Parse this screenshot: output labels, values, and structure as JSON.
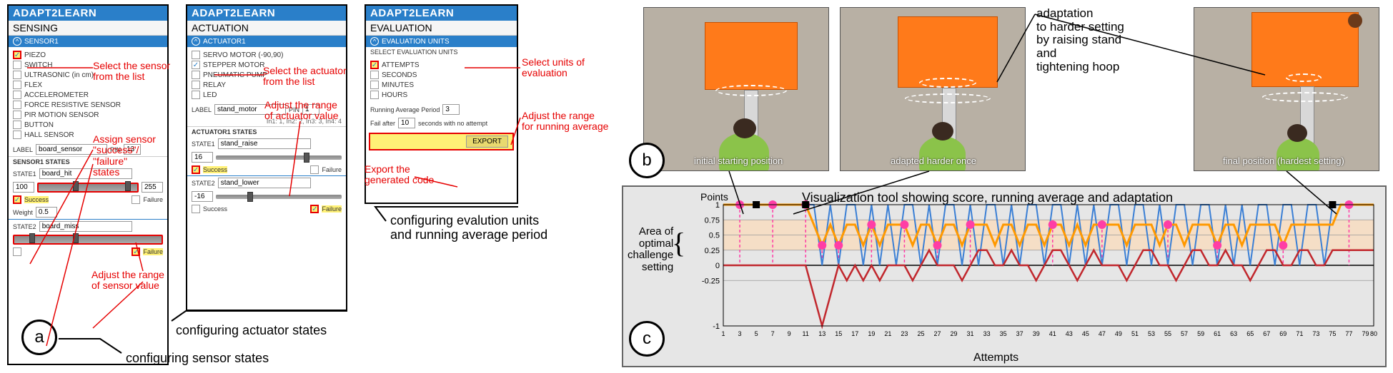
{
  "app_title": "ADAPT2LEARN",
  "panel_a": {
    "subheader": "SENSING",
    "section": "SENSOR1",
    "sensors": [
      "PIEZO",
      "SWITCH",
      "ULTRASONIC (in cm)",
      "FLEX",
      "ACCELEROMETER",
      "FORCE RESISTIVE SENSOR",
      "PIR MOTION SENSOR",
      "BUTTON",
      "HALL SENSOR"
    ],
    "checked_index": 0,
    "label_caption": "LABEL",
    "label_value": "board_sensor",
    "pin_caption": "PIN",
    "pin_value": "13",
    "states_header": "SENSOR1 STATES",
    "state1_label": "STATE1",
    "state1_value": "board_hit",
    "state1_min": "100",
    "state1_max": "255",
    "state1_success": "Success",
    "state1_failure": "Failure",
    "weight_label": "Weight",
    "weight_value": "0.5",
    "state2_label": "STATE2",
    "state2_value": "board_miss",
    "state2_failure": "Failure"
  },
  "panel_b": {
    "subheader": "ACTUATION",
    "section": "ACTUATOR1",
    "actuators": [
      "SERVO MOTOR (-90,90)",
      "STEPPER MOTOR",
      "PNEUMATIC PUMP",
      "RELAY",
      "LED"
    ],
    "checked_index": 1,
    "label_caption": "LABEL",
    "label_value": "stand_motor",
    "pin_caption": "PIN",
    "pin_value": "1",
    "pins_hint": "In1: 1, In2: 2, In3: 3, In4: 4",
    "states_header": "ACTUATOR1 STATES",
    "state1_label": "STATE1",
    "state1_value": "stand_raise",
    "state1_num": "16",
    "state1_success": "Success",
    "state1_failure": "Failure",
    "state2_label": "STATE2",
    "state2_value": "stand_lower",
    "state2_num": "-16",
    "state2_success": "Success",
    "state2_failure": "Failure"
  },
  "panel_c": {
    "subheader": "EVALUATION",
    "section": "EVALUATION UNITS",
    "select_label": "SELECT EVALUATION UNITS",
    "units": [
      "ATTEMPTS",
      "SECONDS",
      "MINUTES",
      "HOURS"
    ],
    "checked_index": 0,
    "running_avg_label": "Running Average Period",
    "running_avg_value": "3",
    "fail_after_pre": "Fail after",
    "fail_after_value": "10",
    "fail_after_post": "seconds with no attempt",
    "export_btn": "EXPORT"
  },
  "annotations": {
    "select_sensor": "Select the sensor\nfrom the list",
    "assign_states": "Assign sensor\n\"success\"/\n\"failure\"\nstates",
    "adjust_sensor_range": "Adjust the range\nof sensor value",
    "select_actuator": "Select the actuator\nfrom the list",
    "adjust_actuator_range": "Adjust the range\nof actuator value",
    "select_units": "Select units of\nevaluation",
    "adjust_running_avg": "Adjust the range\nfor running average",
    "export_code": "Export the\ngenerated code"
  },
  "captions": {
    "sensor_states": "configuring sensor states",
    "actuator_states": "configuring actuator states",
    "eval_units": "configuring evalution units\nand running average period"
  },
  "photos": {
    "p1_caption": "initial starting position",
    "p2_caption": "adapted harder once",
    "p3_caption": "final position (hardest setting)",
    "adaptation_label": "adaptation\nto harder setting\nby raising stand\nand\ntightening hoop"
  },
  "chart": {
    "title": "Visualization tool showing score, running average and adaptation",
    "points_label": "Points",
    "area_label": "Area of\noptimal\nchallenge\nsetting",
    "xlabel": "Attempts",
    "y_ticks": [
      "-1",
      "-0.25",
      "0",
      "0.25",
      "0.5",
      "0.75",
      "1"
    ],
    "x_ticks": [
      1,
      3,
      5,
      7,
      9,
      11,
      13,
      15,
      17,
      19,
      21,
      23,
      25,
      27,
      29,
      31,
      33,
      35,
      37,
      39,
      41,
      43,
      45,
      47,
      49,
      51,
      53,
      55,
      57,
      59,
      61,
      63,
      65,
      67,
      69,
      71,
      73,
      75,
      77,
      79,
      80
    ],
    "band_min": 0.25,
    "band_max": 0.75,
    "band_color": "#ffd8b0",
    "blue_color": "#3a7fd5",
    "orange_color": "#ff9900",
    "red_color": "#c1272d",
    "pink_color": "#ff3ea5",
    "score_series": [
      1,
      1,
      1,
      1,
      1,
      1,
      1,
      1,
      1,
      1,
      1,
      1,
      0,
      1,
      0,
      1,
      1,
      0,
      1,
      0,
      1,
      0,
      1,
      1,
      0,
      1,
      0,
      1,
      1,
      0,
      1,
      0,
      1,
      1,
      0,
      1,
      0,
      1,
      1,
      0,
      1,
      1,
      0,
      1,
      0,
      1,
      0,
      1,
      1,
      0,
      1,
      1,
      0,
      1,
      0,
      1,
      1,
      0,
      1,
      1,
      0,
      1,
      0,
      1,
      0,
      1,
      1,
      0,
      1,
      1,
      0,
      1,
      1,
      0,
      1,
      1,
      1,
      1,
      1,
      1
    ],
    "cum_red": [
      0,
      0,
      0,
      0,
      0,
      0,
      0,
      0,
      0,
      0,
      0,
      -0.5,
      -1,
      -0.5,
      0,
      -0.25,
      0,
      -0.25,
      0,
      -0.25,
      0,
      0,
      0,
      -0.25,
      0,
      0.25,
      0,
      0,
      0,
      -0.25,
      0,
      0.25,
      0.25,
      0,
      0,
      0.25,
      0,
      0,
      -0.25,
      0,
      0.25,
      0.25,
      0,
      -0.25,
      0,
      0.25,
      0,
      0,
      0,
      -0.25,
      0,
      0.25,
      0.25,
      0,
      0,
      -0.25,
      0,
      0.25,
      0.25,
      0,
      0,
      0.25,
      0,
      0,
      -0.25,
      0,
      0.25,
      0.25,
      0,
      0,
      0.25,
      0.25,
      0,
      0,
      0.25,
      0.25,
      0.25,
      0.25,
      0.25,
      0.25
    ],
    "running_avg": [
      1,
      1,
      1,
      1,
      1,
      1,
      1,
      1,
      1,
      1,
      1,
      0.67,
      0.33,
      0.67,
      0.33,
      0.67,
      0.67,
      0.33,
      0.67,
      0.33,
      0.67,
      0.67,
      0.67,
      0.33,
      0.67,
      0.67,
      0.33,
      0.67,
      0.67,
      0.33,
      0.67,
      0.67,
      0.67,
      0.33,
      0.67,
      0.67,
      0.33,
      0.67,
      0.67,
      0.33,
      0.67,
      0.67,
      0.33,
      0.67,
      0.33,
      0.67,
      0.67,
      0.67,
      0.67,
      0.33,
      0.67,
      0.67,
      0.67,
      0.33,
      0.67,
      0.67,
      0.33,
      0.67,
      0.67,
      0.67,
      0.33,
      0.67,
      0.67,
      0.33,
      0.67,
      0.67,
      0.67,
      0.67,
      0.33,
      0.67,
      0.67,
      0.67,
      0.67,
      0.67,
      0.67,
      1,
      1,
      1,
      1,
      1
    ],
    "pink_points_x": [
      3,
      7,
      11,
      13,
      15,
      19,
      23,
      27,
      31,
      41,
      47,
      55,
      61,
      69,
      77
    ],
    "black_markers_x": [
      5,
      11,
      75
    ]
  },
  "colors": {
    "header_blue": "#2a7fc9",
    "highlight": "#fff176",
    "red": "#e60000"
  }
}
